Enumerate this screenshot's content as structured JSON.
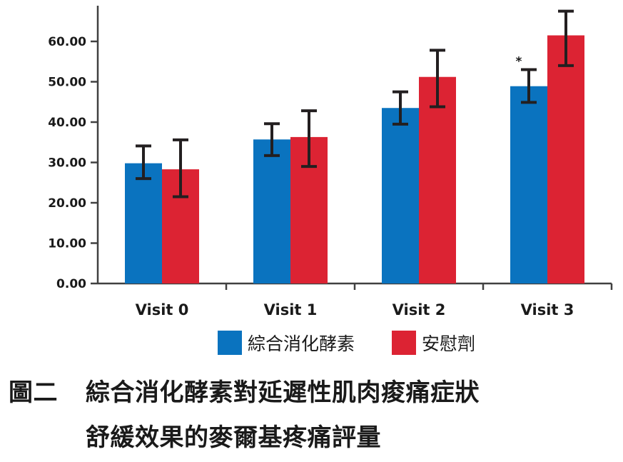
{
  "chart_data": {
    "type": "bar",
    "categories": [
      "Visit 0",
      "Visit 1",
      "Visit 2",
      "Visit 3"
    ],
    "series": [
      {
        "name": "綜合消化酵素",
        "color": "#0a73bf",
        "values": [
          29.8,
          35.7,
          43.5,
          48.9
        ],
        "error_low": [
          26.0,
          31.7,
          39.5,
          44.9
        ],
        "error_high": [
          34.1,
          39.6,
          47.5,
          53.0
        ]
      },
      {
        "name": "安慰劑",
        "color": "#dc2333",
        "values": [
          28.3,
          36.3,
          51.2,
          61.5
        ],
        "error_low": [
          21.5,
          29.0,
          43.8,
          54.0
        ],
        "error_high": [
          35.6,
          42.8,
          57.8,
          67.5
        ]
      }
    ],
    "y_ticks": [
      "0.00",
      "10.00",
      "20.00",
      "30.00",
      "40.00",
      "50.00",
      "60.00"
    ],
    "ylim": [
      0,
      68
    ],
    "annotations": [
      {
        "text": "*",
        "category": "Visit 3",
        "series": "綜合消化酵素"
      }
    ],
    "legend": "bottom",
    "grid": false
  },
  "caption": {
    "prefix": "圖二",
    "line1": "綜合消化酵素對延遲性肌肉痠痛症狀",
    "line2": "舒緩效果的麥爾基疼痛評量"
  }
}
